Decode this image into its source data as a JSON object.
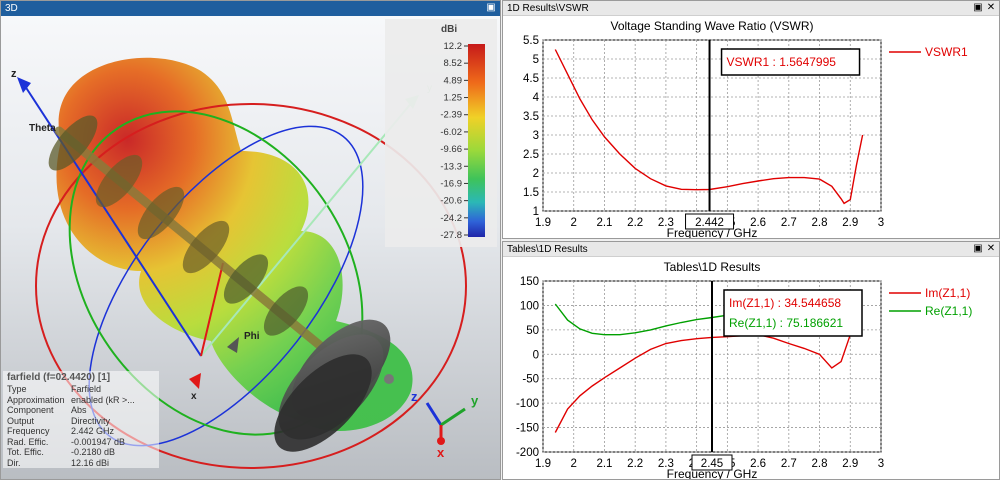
{
  "panels": {
    "view3d": {
      "title": "3D",
      "colorbar": {
        "unit": "dBi",
        "ticks": [
          "12.2",
          "8.52",
          "4.89",
          "1.25",
          "-2.39",
          "-6.02",
          "-9.66",
          "-13.3",
          "-16.9",
          "-20.6",
          "-24.2",
          "-27.8"
        ]
      },
      "axis_labels": {
        "z": "z",
        "theta": "Theta",
        "y_small": "y",
        "phi": "Phi",
        "x": "x"
      },
      "triad": {
        "z": "z",
        "y": "y",
        "x": "x"
      },
      "info": {
        "title": "farfield (f=02.4420) [1]",
        "rows": [
          {
            "key": "Type",
            "value": "Farfield"
          },
          {
            "key": "Approximation",
            "value": "enabled (kR >..."
          },
          {
            "key": "Component",
            "value": "Abs"
          },
          {
            "key": "Output",
            "value": "Directivity"
          },
          {
            "key": "Frequency",
            "value": "2.442 GHz"
          },
          {
            "key": "Rad. Effic.",
            "value": "-0.001947 dB"
          },
          {
            "key": "Tot. Effic.",
            "value": "-0.2180 dB"
          },
          {
            "key": "Dir.",
            "value": "12.16 dBi"
          }
        ]
      }
    },
    "vswr": {
      "title": "1D Results\\VSWR"
    },
    "results": {
      "title": "Tables\\1D Results"
    }
  },
  "chart_data": [
    {
      "type": "line",
      "title": "Voltage Standing Wave Ratio (VSWR)",
      "xlabel": "Frequency / GHz",
      "ylabel": "",
      "xlim": [
        1.9,
        3.0
      ],
      "ylim": [
        1.0,
        5.5
      ],
      "xticks": [
        "1.9",
        "2",
        "2.1",
        "2.2",
        "2.3",
        "2.4",
        "2.5",
        "2.6",
        "2.7",
        "2.8",
        "2.9",
        "3"
      ],
      "yticks": [
        "1",
        "1.5",
        "2",
        "2.5",
        "3",
        "3.5",
        "4",
        "4.5",
        "5",
        "5.5"
      ],
      "marker_x": 2.442,
      "marker_label": "2.442",
      "annotations": [
        {
          "text": "VSWR1 : 1.5647995",
          "color": "#e00000"
        }
      ],
      "legend": "right",
      "series": [
        {
          "name": "VSWR1",
          "color": "#e00000",
          "x": [
            1.94,
            1.98,
            2.02,
            2.06,
            2.1,
            2.15,
            2.2,
            2.25,
            2.3,
            2.35,
            2.4,
            2.442,
            2.5,
            2.55,
            2.6,
            2.65,
            2.7,
            2.75,
            2.8,
            2.84,
            2.87,
            2.88,
            2.9,
            2.92,
            2.94
          ],
          "y": [
            5.25,
            4.6,
            3.95,
            3.4,
            2.95,
            2.5,
            2.12,
            1.85,
            1.66,
            1.57,
            1.56,
            1.565,
            1.64,
            1.72,
            1.79,
            1.85,
            1.88,
            1.88,
            1.84,
            1.65,
            1.32,
            1.2,
            1.3,
            2.2,
            3.0
          ]
        }
      ]
    },
    {
      "type": "line",
      "title": "Tables\\1D Results",
      "xlabel": "Frequency / GHz",
      "ylabel": "",
      "xlim": [
        1.9,
        3.0
      ],
      "ylim": [
        -200,
        150
      ],
      "xticks": [
        "1.9",
        "2",
        "2.1",
        "2.2",
        "2.3",
        "2.4",
        "2.5",
        "2.6",
        "2.7",
        "2.8",
        "2.9",
        "3"
      ],
      "yticks": [
        "-200",
        "-150",
        "-100",
        "-50",
        "0",
        "50",
        "100",
        "150"
      ],
      "marker_x": 2.45,
      "marker_label": "2.45",
      "annotations": [
        {
          "text": "Im(Z1,1) : 34.544658",
          "color": "#e00000"
        },
        {
          "text": "Re(Z1,1) : 75.186621",
          "color": "#00a000"
        }
      ],
      "legend": "right",
      "series": [
        {
          "name": "Im(Z1,1)",
          "color": "#e00000",
          "x": [
            1.94,
            1.98,
            2.02,
            2.06,
            2.1,
            2.15,
            2.2,
            2.25,
            2.3,
            2.35,
            2.4,
            2.45,
            2.5,
            2.55,
            2.6,
            2.65,
            2.7,
            2.75,
            2.8,
            2.84,
            2.87,
            2.9,
            2.93
          ],
          "y": [
            -160,
            -112,
            -85,
            -65,
            -48,
            -28,
            -8,
            10,
            22,
            28,
            32,
            34.5,
            36,
            38,
            40,
            33,
            22,
            12,
            0,
            -28,
            -15,
            40,
            95
          ]
        },
        {
          "name": "Re(Z1,1)",
          "color": "#00a000",
          "x": [
            1.94,
            1.98,
            2.02,
            2.06,
            2.1,
            2.15,
            2.2,
            2.25,
            2.3,
            2.35,
            2.4,
            2.45,
            2.5,
            2.55,
            2.6,
            2.65,
            2.7,
            2.75,
            2.8,
            2.84,
            2.87,
            2.9,
            2.93
          ],
          "y": [
            103,
            70,
            52,
            43,
            40,
            40,
            44,
            50,
            58,
            65,
            71,
            75.2,
            80,
            90,
            103,
            118,
            127,
            130,
            128,
            120,
            100,
            105,
            130
          ]
        }
      ]
    }
  ]
}
